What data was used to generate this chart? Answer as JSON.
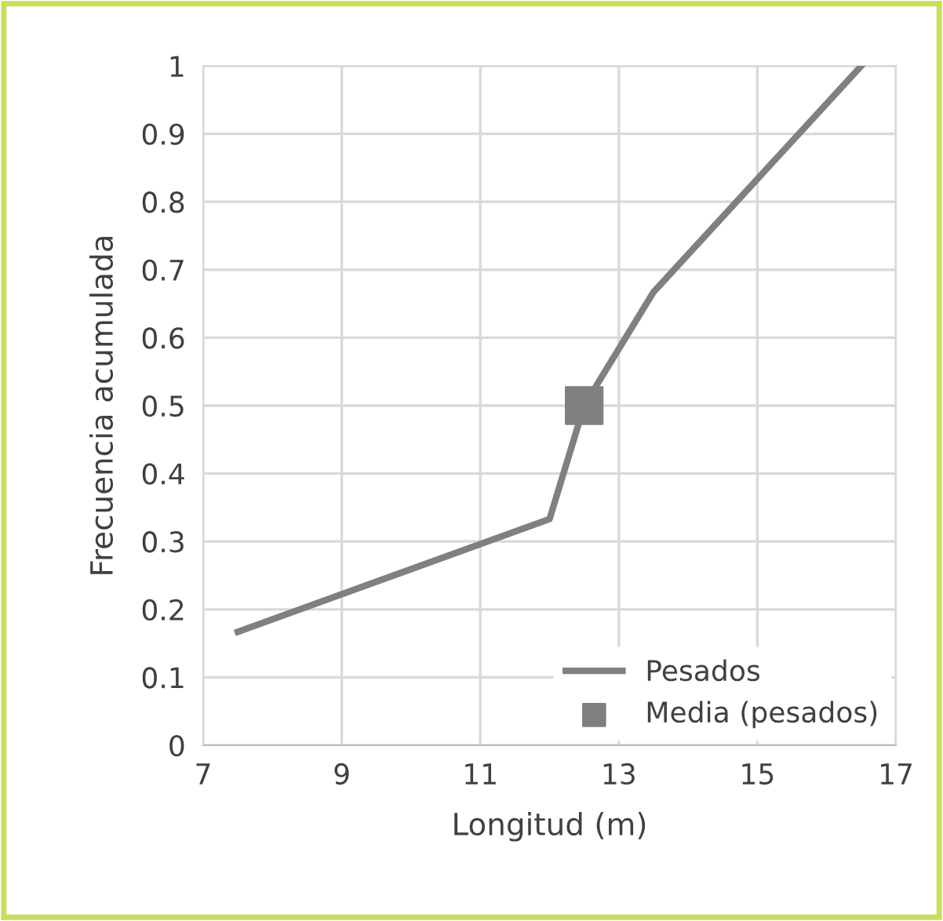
{
  "chart_data": {
    "type": "line",
    "xlabel": "Longitud (m)",
    "ylabel": "Frecuencia acumulada",
    "xlim": [
      7,
      17
    ],
    "xticks": [
      7,
      9,
      11,
      13,
      15,
      17
    ],
    "ylim": [
      0,
      1
    ],
    "yticks": [
      0,
      0.1,
      0.2,
      0.3,
      0.4,
      0.5,
      0.6,
      0.7,
      0.8,
      0.9,
      1
    ],
    "grid": true,
    "legend": "bottom right",
    "series": [
      {
        "name": "Pesados",
        "color": "#808080",
        "marker": "none",
        "x": [
          7.5,
          12,
          12.5,
          13.5,
          16.5
        ],
        "values": [
          0.167,
          0.333,
          0.5,
          0.667,
          1
        ]
      },
      {
        "name": "Media (pesados)",
        "color": "#808080",
        "type": "scatter",
        "marker": "square",
        "x": [
          12.5
        ],
        "values": [
          0.5
        ]
      }
    ]
  }
}
